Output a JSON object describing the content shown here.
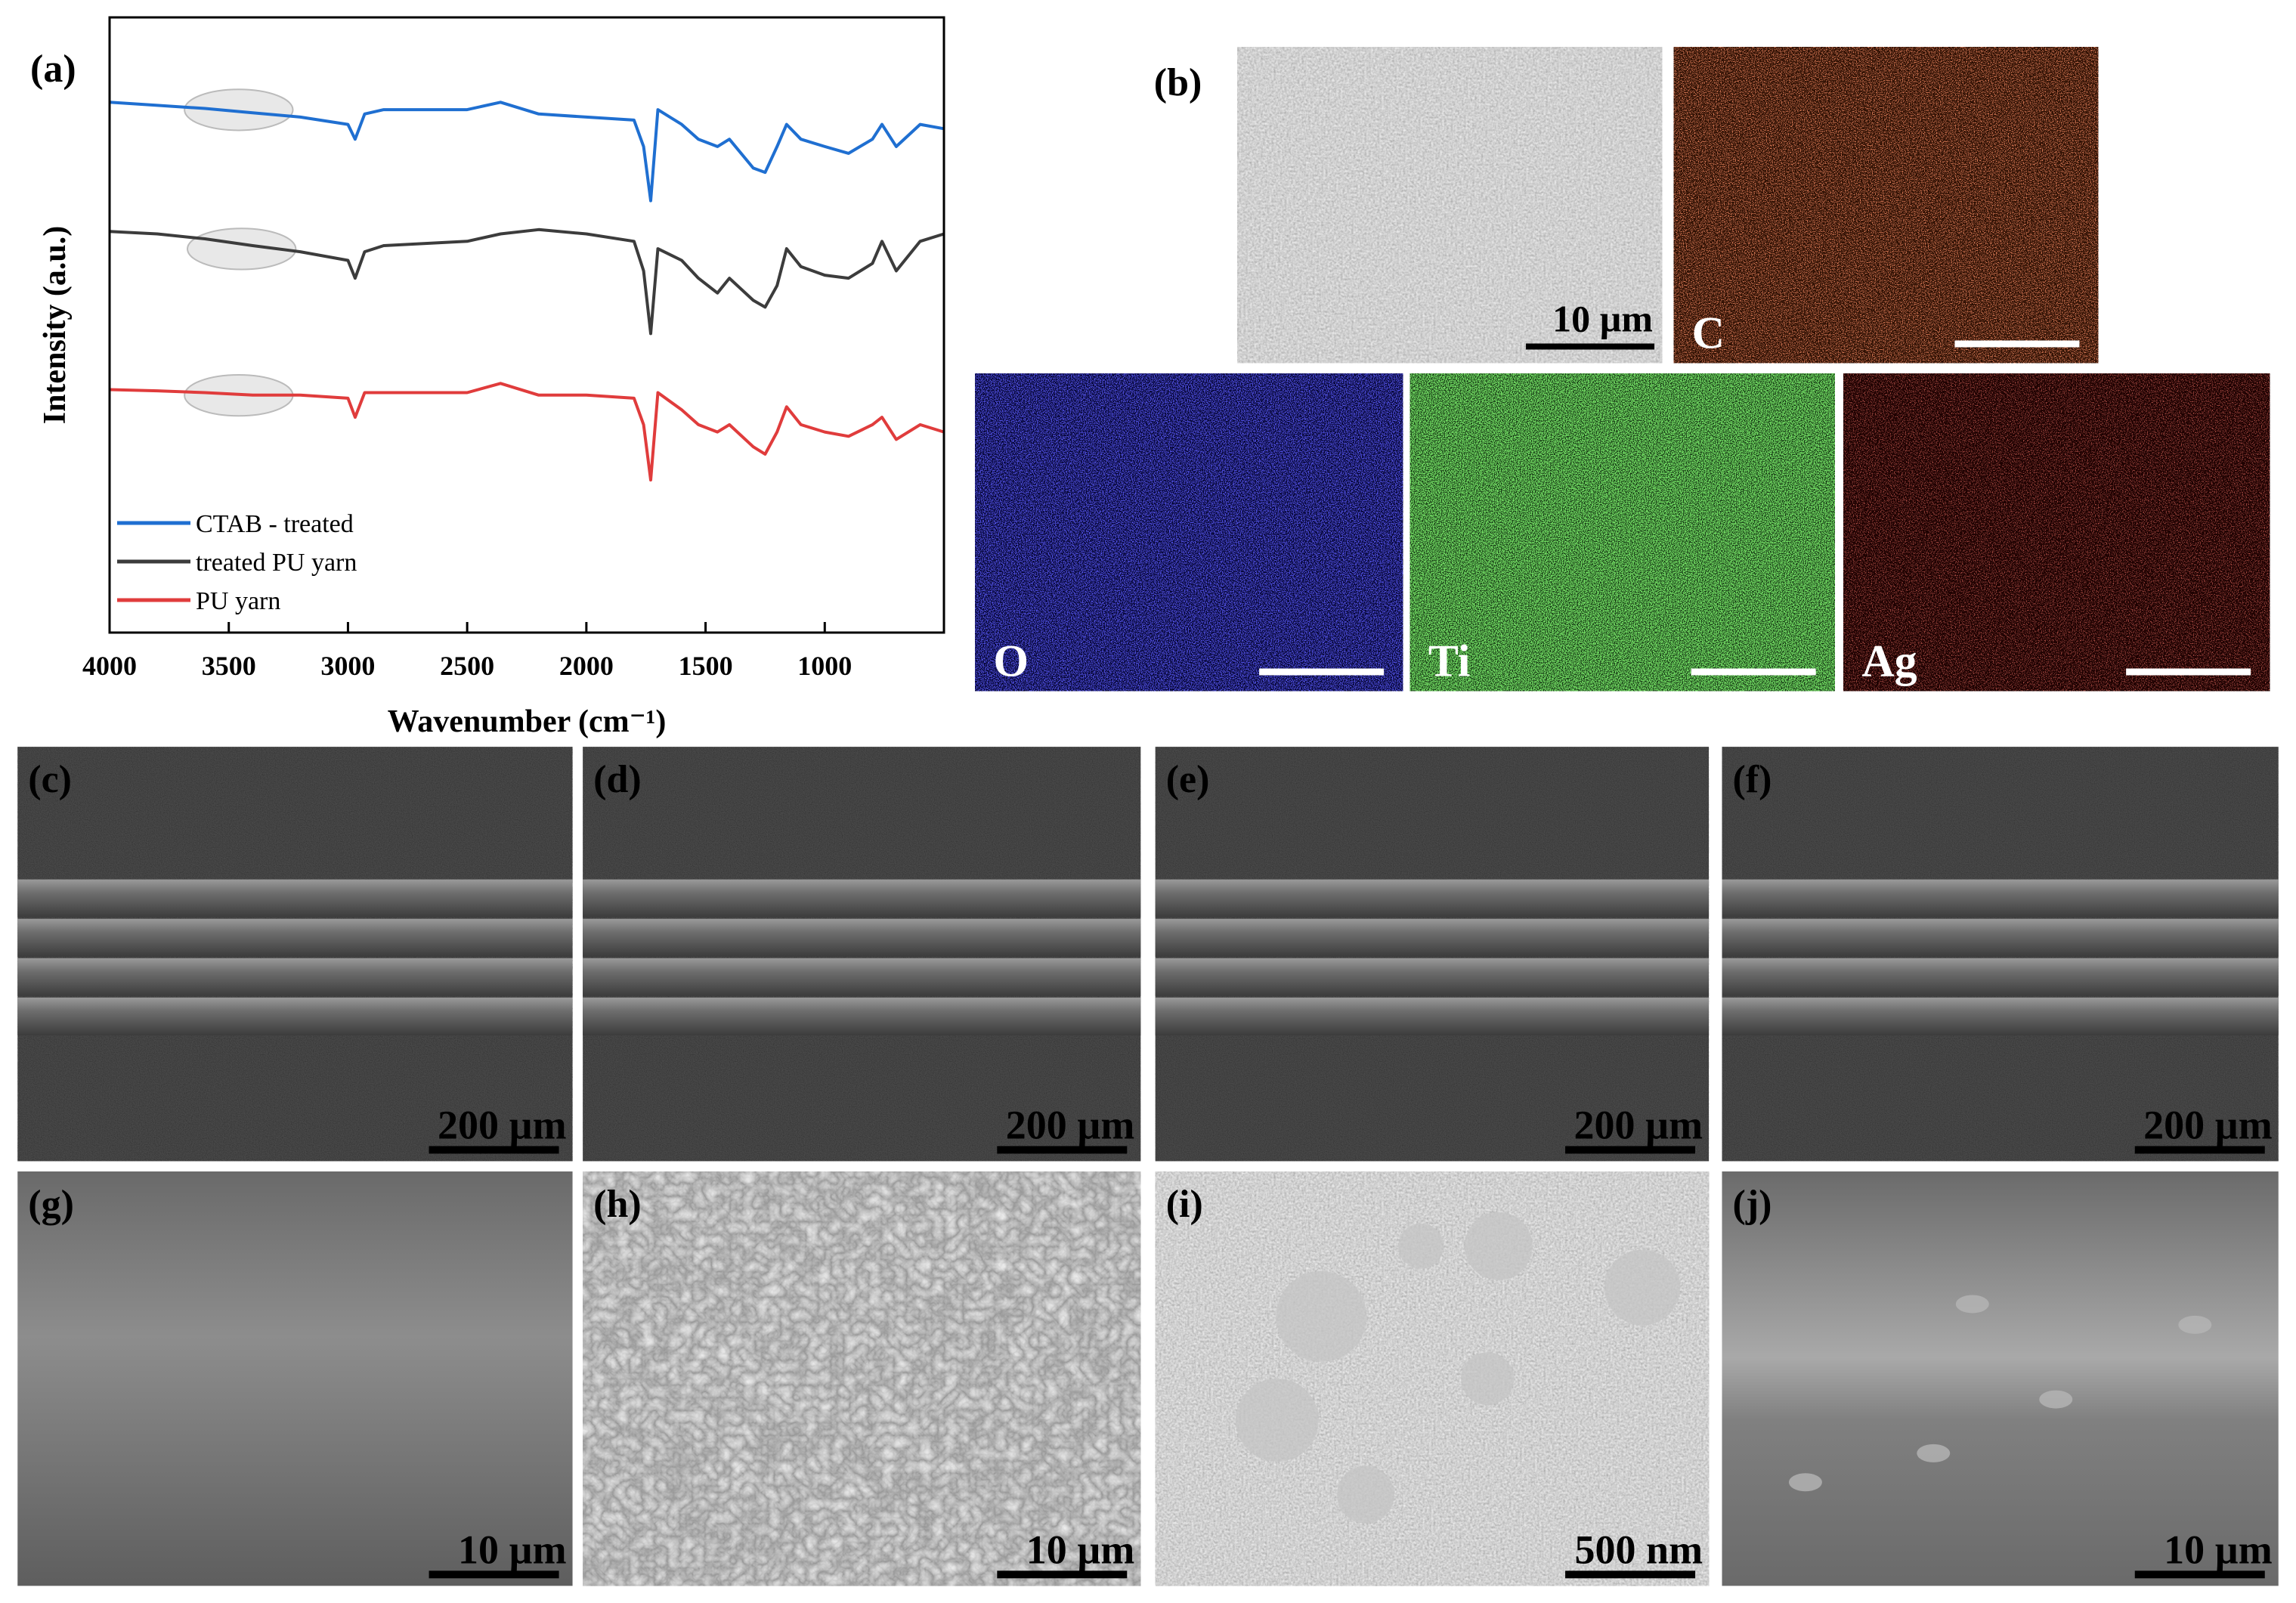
{
  "chart_data": {
    "type": "line",
    "panel_label": "(a)",
    "x_label": "Wavenumber (cm⁻¹)",
    "y_label": "Intensity (a.u.)",
    "x": [
      4000,
      3800,
      3600,
      3400,
      3200,
      3000,
      2970,
      2930,
      2850,
      2500,
      2360,
      2200,
      2000,
      1800,
      1760,
      1730,
      1700,
      1600,
      1530,
      1450,
      1400,
      1300,
      1250,
      1200,
      1160,
      1100,
      1000,
      900,
      800,
      760,
      700,
      600,
      500
    ],
    "xlim": [
      4000,
      500
    ],
    "xticks": [
      4000,
      3500,
      3000,
      2500,
      2000,
      1500,
      1000
    ],
    "ylim": [
      0,
      10
    ],
    "legend": "lower left",
    "series": [
      {
        "name": "CTAB - treated",
        "color": "#1f6fd1",
        "values": [
          8.62,
          8.57,
          8.52,
          8.45,
          8.38,
          8.26,
          8.02,
          8.43,
          8.5,
          8.5,
          8.62,
          8.43,
          8.38,
          8.33,
          7.9,
          7.02,
          8.5,
          8.26,
          8.02,
          7.9,
          8.02,
          7.55,
          7.48,
          7.9,
          8.26,
          8.02,
          7.9,
          7.79,
          8.02,
          8.26,
          7.9,
          8.26,
          8.19
        ]
      },
      {
        "name": "treated PU yarn",
        "color": "#3c3c3c",
        "values": [
          6.52,
          6.48,
          6.4,
          6.29,
          6.19,
          6.05,
          5.76,
          6.19,
          6.29,
          6.36,
          6.48,
          6.55,
          6.48,
          6.36,
          5.88,
          4.86,
          6.24,
          6.05,
          5.76,
          5.52,
          5.76,
          5.4,
          5.29,
          5.64,
          6.24,
          5.95,
          5.81,
          5.76,
          6.0,
          6.36,
          5.88,
          6.36,
          6.48
        ]
      },
      {
        "name": "PU yarn",
        "color": "#e03c3c",
        "values": [
          3.95,
          3.93,
          3.9,
          3.86,
          3.86,
          3.81,
          3.5,
          3.9,
          3.9,
          3.9,
          4.05,
          3.86,
          3.86,
          3.81,
          3.38,
          2.48,
          3.9,
          3.62,
          3.38,
          3.26,
          3.38,
          3.02,
          2.9,
          3.26,
          3.67,
          3.38,
          3.26,
          3.19,
          3.38,
          3.5,
          3.14,
          3.38,
          3.26
        ]
      }
    ]
  },
  "eds": {
    "label": "(b)",
    "images": [
      {
        "scale_bar": "10 µm"
      },
      {
        "element": "C"
      },
      {
        "element": "O"
      },
      {
        "element": "Ti"
      },
      {
        "element": "Ag"
      }
    ]
  },
  "sem": [
    {
      "label": "(c)",
      "scale_bar": "200 µm"
    },
    {
      "label": "(d)",
      "scale_bar": "200 µm"
    },
    {
      "label": "(e)",
      "scale_bar": "200 µm"
    },
    {
      "label": "(f)",
      "scale_bar": "200 µm"
    },
    {
      "label": "(g)",
      "scale_bar": "10 µm"
    },
    {
      "label": "(h)",
      "scale_bar": "10 µm"
    },
    {
      "label": "(i)",
      "scale_bar": "500 nm"
    },
    {
      "label": "(j)",
      "scale_bar": "10 µm"
    }
  ]
}
